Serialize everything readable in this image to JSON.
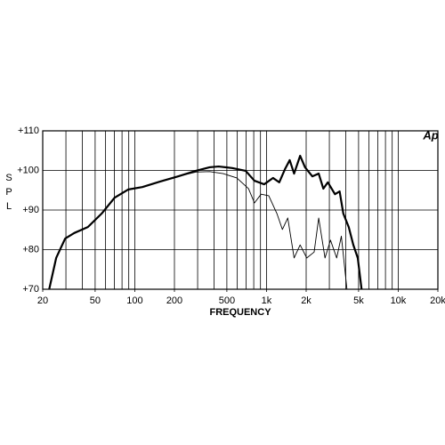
{
  "chart_data": {
    "type": "line",
    "log_x": true,
    "brand": "Ap",
    "xlabel": "FREQUENCY",
    "ylabel": "SPL",
    "xlim": [
      20,
      20000
    ],
    "ylim": [
      70,
      110
    ],
    "xticks": [
      20,
      50,
      100,
      200,
      500,
      {
        "value": 1000,
        "label": "1k"
      },
      {
        "value": 2000,
        "label": "2k"
      },
      {
        "value": 5000,
        "label": "5k"
      },
      {
        "value": 10000,
        "label": "10k"
      },
      {
        "value": 20000,
        "label": "20k"
      }
    ],
    "xgrid": [
      30,
      40,
      50,
      60,
      70,
      80,
      90,
      100,
      200,
      300,
      400,
      500,
      600,
      700,
      800,
      900,
      1000,
      2000,
      3000,
      4000,
      5000,
      6000,
      7000,
      8000,
      9000,
      10000
    ],
    "yticks": [
      {
        "value": 70,
        "label": "+70"
      },
      {
        "value": 80,
        "label": "+80"
      },
      {
        "value": 90,
        "label": "+90"
      },
      {
        "value": 100,
        "label": "+100"
      },
      {
        "value": 110,
        "label": "+110"
      }
    ],
    "grid": true,
    "series": [
      {
        "color": "#000000",
        "width": 2.2,
        "x": [
          22.4,
          25.3,
          29.6,
          34.7,
          44,
          56,
          70.2,
          89.4,
          114,
          156,
          213,
          291,
          370,
          433,
          548,
          694,
          810,
          960,
          1120,
          1250,
          1380,
          1500,
          1620,
          1800,
          1960,
          2230,
          2490,
          2700,
          2920,
          3310,
          3590,
          3830,
          4210,
          4560,
          4930,
          5270
        ],
        "values": [
          70,
          77.9,
          82.8,
          84.2,
          85.7,
          89.1,
          93.1,
          95.2,
          95.8,
          97.2,
          98.5,
          99.9,
          100.8,
          101.0,
          100.6,
          99.9,
          97.4,
          96.5,
          98.1,
          97.0,
          100.3,
          102.6,
          99.2,
          103.7,
          100.8,
          98.5,
          99.2,
          95.4,
          97.0,
          94.0,
          94.7,
          89.1,
          85.7,
          81.2,
          77.9,
          70
        ]
      },
      {
        "color": "#000000",
        "width": 0.9,
        "x": [
          22.4,
          25.3,
          29.6,
          34.7,
          44,
          56,
          70.2,
          89.4,
          114,
          156,
          213,
          291,
          370,
          469,
          595,
          730,
          810,
          910,
          1040,
          1200,
          1320,
          1450,
          1620,
          1800,
          2020,
          2300,
          2490,
          2780,
          3060,
          3410,
          3700,
          4080
        ],
        "values": [
          70,
          77.9,
          82.8,
          84.2,
          85.7,
          89.1,
          93.1,
          95.2,
          95.8,
          97.2,
          98.5,
          99.6,
          99.7,
          99.2,
          98.1,
          95.4,
          91.8,
          94.0,
          93.6,
          89.1,
          85.1,
          88.0,
          77.9,
          81.2,
          77.9,
          79.4,
          88.0,
          77.9,
          82.4,
          77.9,
          83.4,
          70
        ]
      }
    ]
  }
}
